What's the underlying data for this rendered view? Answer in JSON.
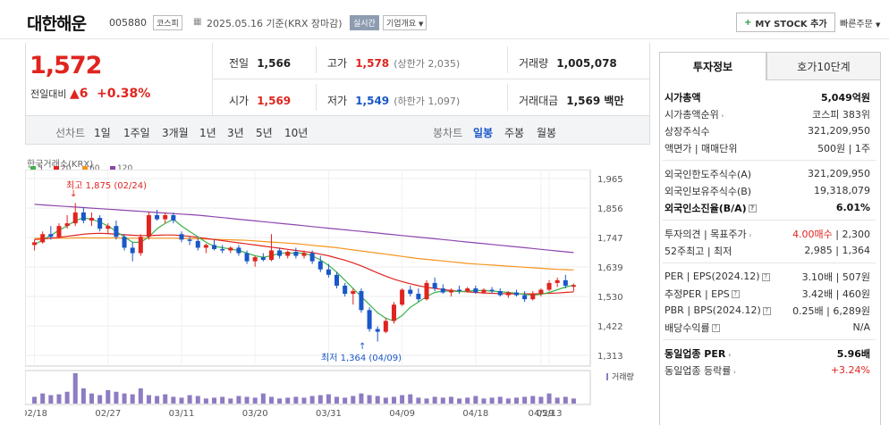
{
  "header": {
    "stock_name": "대한해운",
    "stock_code": "005880",
    "market_badge": "코스피",
    "date_text": "2025.05.16 기준(KRX 장마감)",
    "realtime_label": "실시간",
    "corp_label": "기업개요",
    "mystock_label": "MY STOCK 추가",
    "quick_order_label": "빠른주문"
  },
  "price": {
    "current": "1,572",
    "change_label": "전일대비",
    "change_value": "6",
    "change_pct": "+0.38%"
  },
  "quotes": {
    "prev_label": "전일",
    "prev": "1,566",
    "high_label": "고가",
    "high": "1,578",
    "upper_limit": "(상한가 2,035)",
    "volume_label": "거래량",
    "volume": "1,005,078",
    "open_label": "시가",
    "open": "1,569",
    "low_label": "저가",
    "low": "1,549",
    "lower_limit": "(하한가 1,097)",
    "amount_label": "거래대금",
    "amount": "1,569 백만"
  },
  "chart_tabs": {
    "line_chart": "선차트",
    "periods": [
      "1일",
      "1주일",
      "3개월",
      "1년",
      "3년",
      "5년",
      "10년"
    ],
    "candle_chart": "봉차트",
    "candle_periods": [
      "일봉",
      "주봉",
      "월봉"
    ]
  },
  "chart_legend": {
    "source": "한국거래소(KRX)",
    "ma": [
      {
        "label": "5",
        "color": "#3cb34a"
      },
      {
        "label": "20",
        "color": "#e0241f"
      },
      {
        "label": "60",
        "color": "#f7941d"
      },
      {
        "label": "120",
        "color": "#8e44ad"
      }
    ],
    "volume_label": "거래량",
    "high_annot": "최고 1,875 (02/24)",
    "low_annot": "최저 1,364 (04/09)"
  },
  "chart_data": {
    "type": "candlestick",
    "y_ticks": [
      "1,965",
      "1,856",
      "1,747",
      "1,639",
      "1,530",
      "1,422",
      "1,313"
    ],
    "ylim": [
      1313,
      1965
    ],
    "x_ticks": [
      "02/18",
      "02/27",
      "03/11",
      "03/20",
      "03/31",
      "04/09",
      "04/18",
      "04/29",
      "05/13"
    ],
    "candles": [
      [
        1720,
        1740,
        1700,
        1730
      ],
      [
        1730,
        1770,
        1725,
        1760
      ],
      [
        1760,
        1790,
        1740,
        1750
      ],
      [
        1750,
        1800,
        1745,
        1790
      ],
      [
        1790,
        1830,
        1780,
        1800
      ],
      [
        1800,
        1875,
        1790,
        1840
      ],
      [
        1840,
        1860,
        1800,
        1810
      ],
      [
        1810,
        1840,
        1790,
        1820
      ],
      [
        1820,
        1830,
        1770,
        1780
      ],
      [
        1780,
        1800,
        1760,
        1790
      ],
      [
        1790,
        1810,
        1740,
        1750
      ],
      [
        1750,
        1760,
        1700,
        1710
      ],
      [
        1710,
        1730,
        1660,
        1690
      ],
      [
        1690,
        1760,
        1680,
        1750
      ],
      [
        1750,
        1840,
        1740,
        1830
      ],
      [
        1830,
        1850,
        1810,
        1815
      ],
      [
        1815,
        1840,
        1800,
        1830
      ],
      [
        1830,
        1840,
        1800,
        1810
      ],
      [
        1760,
        1770,
        1730,
        1740
      ],
      [
        1740,
        1750,
        1720,
        1735
      ],
      [
        1735,
        1745,
        1700,
        1710
      ],
      [
        1710,
        1725,
        1690,
        1720
      ],
      [
        1720,
        1740,
        1700,
        1705
      ],
      [
        1705,
        1720,
        1690,
        1700
      ],
      [
        1700,
        1715,
        1690,
        1710
      ],
      [
        1710,
        1720,
        1680,
        1690
      ],
      [
        1690,
        1700,
        1650,
        1660
      ],
      [
        1660,
        1680,
        1640,
        1675
      ],
      [
        1675,
        1690,
        1660,
        1665
      ],
      [
        1665,
        1760,
        1660,
        1700
      ],
      [
        1700,
        1710,
        1670,
        1680
      ],
      [
        1680,
        1700,
        1670,
        1695
      ],
      [
        1695,
        1710,
        1670,
        1680
      ],
      [
        1680,
        1700,
        1670,
        1690
      ],
      [
        1690,
        1700,
        1650,
        1660
      ],
      [
        1660,
        1680,
        1620,
        1630
      ],
      [
        1630,
        1650,
        1600,
        1610
      ],
      [
        1610,
        1620,
        1560,
        1570
      ],
      [
        1570,
        1580,
        1530,
        1540
      ],
      [
        1540,
        1560,
        1500,
        1550
      ],
      [
        1550,
        1560,
        1470,
        1480
      ],
      [
        1480,
        1490,
        1400,
        1410
      ],
      [
        1410,
        1420,
        1364,
        1400
      ],
      [
        1400,
        1450,
        1395,
        1440
      ],
      [
        1440,
        1510,
        1430,
        1500
      ],
      [
        1500,
        1560,
        1495,
        1555
      ],
      [
        1555,
        1570,
        1530,
        1540
      ],
      [
        1540,
        1560,
        1510,
        1520
      ],
      [
        1520,
        1590,
        1515,
        1580
      ],
      [
        1580,
        1600,
        1550,
        1560
      ],
      [
        1560,
        1575,
        1540,
        1545
      ],
      [
        1545,
        1560,
        1530,
        1555
      ],
      [
        1555,
        1570,
        1540,
        1550
      ],
      [
        1550,
        1565,
        1545,
        1560
      ],
      [
        1560,
        1570,
        1540,
        1545
      ],
      [
        1545,
        1560,
        1540,
        1555
      ],
      [
        1555,
        1565,
        1540,
        1550
      ],
      [
        1550,
        1560,
        1530,
        1535
      ],
      [
        1535,
        1550,
        1525,
        1545
      ],
      [
        1545,
        1555,
        1530,
        1535
      ],
      [
        1535,
        1550,
        1510,
        1520
      ],
      [
        1520,
        1550,
        1515,
        1540
      ],
      [
        1540,
        1560,
        1530,
        1555
      ],
      [
        1555,
        1590,
        1550,
        1580
      ],
      [
        1580,
        1600,
        1565,
        1590
      ],
      [
        1590,
        1610,
        1560,
        1570
      ],
      [
        1566,
        1578,
        1549,
        1572
      ]
    ],
    "ma5": [
      1720,
      1740,
      1755,
      1775,
      1790,
      1810,
      1820,
      1815,
      1805,
      1790,
      1770,
      1750,
      1730,
      1730,
      1750,
      1780,
      1800,
      1815,
      1790,
      1770,
      1750,
      1730,
      1715,
      1710,
      1705,
      1700,
      1690,
      1680,
      1675,
      1680,
      1690,
      1690,
      1690,
      1690,
      1680,
      1665,
      1645,
      1620,
      1590,
      1560,
      1530,
      1500,
      1470,
      1450,
      1440,
      1460,
      1490,
      1510,
      1530,
      1545,
      1550,
      1550,
      1548,
      1550,
      1552,
      1552,
      1550,
      1548,
      1545,
      1542,
      1538,
      1535,
      1538,
      1545,
      1555,
      1565,
      1572
    ],
    "ma20": [
      1740,
      1742,
      1745,
      1748,
      1752,
      1756,
      1760,
      1762,
      1763,
      1762,
      1760,
      1758,
      1756,
      1755,
      1755,
      1756,
      1757,
      1757,
      1755,
      1752,
      1748,
      1744,
      1740,
      1736,
      1732,
      1728,
      1724,
      1720,
      1716,
      1712,
      1708,
      1704,
      1700,
      1696,
      1692,
      1686,
      1680,
      1672,
      1664,
      1654,
      1643,
      1630,
      1617,
      1605,
      1594,
      1585,
      1577,
      1570,
      1564,
      1560,
      1556,
      1552,
      1549,
      1547,
      1545,
      1543,
      1542,
      1541,
      1540,
      1540,
      1540,
      1540,
      1541,
      1542,
      1543,
      1545,
      1547
    ],
    "ma60": [
      1745,
      1745,
      1745,
      1745,
      1745,
      1746,
      1746,
      1746,
      1746,
      1746,
      1746,
      1745,
      1745,
      1745,
      1745,
      1745,
      1745,
      1745,
      1744,
      1744,
      1743,
      1742,
      1741,
      1740,
      1739,
      1738,
      1737,
      1735,
      1733,
      1731,
      1729,
      1727,
      1725,
      1722,
      1719,
      1716,
      1713,
      1710,
      1706,
      1702,
      1698,
      1694,
      1690,
      1686,
      1682,
      1678,
      1674,
      1670,
      1667,
      1664,
      1661,
      1658,
      1655,
      1652,
      1650,
      1648,
      1646,
      1644,
      1642,
      1640,
      1638,
      1636,
      1634,
      1632,
      1630,
      1629,
      1628
    ],
    "ma120": [
      1870,
      1868,
      1866,
      1864,
      1862,
      1860,
      1858,
      1856,
      1854,
      1852,
      1850,
      1848,
      1846,
      1844,
      1842,
      1840,
      1838,
      1836,
      1834,
      1832,
      1830,
      1827,
      1824,
      1821,
      1818,
      1815,
      1812,
      1809,
      1806,
      1803,
      1800,
      1797,
      1794,
      1791,
      1788,
      1785,
      1782,
      1779,
      1776,
      1773,
      1770,
      1767,
      1764,
      1761,
      1758,
      1755,
      1752,
      1749,
      1746,
      1743,
      1740,
      1737,
      1734,
      1731,
      1728,
      1725,
      1722,
      1719,
      1716,
      1713,
      1710,
      1707,
      1704,
      1701,
      1698,
      1695,
      1692
    ],
    "volume": [
      40,
      60,
      50,
      55,
      70,
      180,
      90,
      60,
      50,
      80,
      70,
      60,
      55,
      90,
      50,
      45,
      55,
      40,
      35,
      50,
      45,
      30,
      35,
      40,
      30,
      45,
      40,
      35,
      60,
      40,
      30,
      35,
      40,
      35,
      45,
      50,
      55,
      40,
      35,
      45,
      60,
      50,
      45,
      35,
      40,
      50,
      55,
      35,
      30,
      40,
      35,
      40,
      30,
      35,
      45,
      30,
      35,
      40,
      30,
      35,
      40,
      45,
      40,
      60,
      35,
      40,
      30
    ]
  },
  "side": {
    "tab_info": "투자정보",
    "tab_quote": "호가10단계",
    "rows1": [
      {
        "k": "시가총액",
        "v": "5,049억원",
        "bold": true
      },
      {
        "k": "시가총액순위",
        "v": "코스피 383위",
        "chev": true
      },
      {
        "k": "상장주식수",
        "v": "321,209,950"
      },
      {
        "k": "액면가 | 매매단위",
        "v": "500원 | 1주"
      }
    ],
    "rows2": [
      {
        "k": "외국인한도주식수(A)",
        "v": "321,209,950"
      },
      {
        "k": "외국인보유주식수(B)",
        "v": "19,318,079"
      },
      {
        "k": "외국인소진율(B/A)",
        "v": "6.01%",
        "bold": true,
        "q": true
      }
    ],
    "rows3": [
      {
        "k": "투자의견 | 목표주가",
        "v1": "4.00매수",
        "v2": "| 2,300",
        "chev": true
      },
      {
        "k": "52주최고 | 최저",
        "v": "2,985 | 1,364"
      }
    ],
    "rows4": [
      {
        "k": "PER | EPS(2024.12)",
        "v": "3.10배 | 507원",
        "q": true
      },
      {
        "k": "추정PER | EPS",
        "v": "3.42배 | 460원",
        "q": true
      },
      {
        "k": "PBR | BPS(2024.12)",
        "v": "0.25배 | 6,289원",
        "q": true
      },
      {
        "k": "배당수익률",
        "v": "N/A",
        "q": true
      }
    ],
    "rows5": [
      {
        "k": "동일업종 PER",
        "v": "5.96배",
        "bold": true,
        "chev": true
      },
      {
        "k": "동일업종 등락률",
        "v": "+3.24%",
        "red": true,
        "chev": true
      }
    ]
  }
}
